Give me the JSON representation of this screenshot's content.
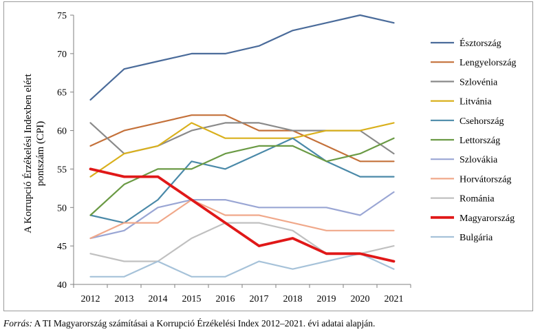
{
  "chart_data": {
    "type": "line",
    "title": "",
    "xlabel": "",
    "ylabel_lines": [
      "A Korrupció Érzékelési Indexben elért",
      "pontszám (CPI)"
    ],
    "categories": [
      "2012",
      "2013",
      "2014",
      "2015",
      "2016",
      "2017",
      "2018",
      "2019",
      "2020",
      "2021"
    ],
    "ylim": [
      40,
      75
    ],
    "yticks": [
      40,
      45,
      50,
      55,
      60,
      65,
      70,
      75
    ],
    "grid": false,
    "legend_position": "right",
    "series": [
      {
        "name": "Észtország",
        "color": "#4a6b9a",
        "width": 2.2,
        "values": [
          64,
          68,
          69,
          70,
          70,
          71,
          73,
          74,
          75,
          74
        ]
      },
      {
        "name": "Lengyelország",
        "color": "#c4713a",
        "width": 2.2,
        "values": [
          58,
          60,
          61,
          62,
          62,
          60,
          60,
          58,
          56,
          56
        ]
      },
      {
        "name": "Szlovénia",
        "color": "#8a8a8a",
        "width": 2.2,
        "values": [
          61,
          57,
          58,
          60,
          61,
          61,
          60,
          60,
          60,
          57
        ]
      },
      {
        "name": "Litvánia",
        "color": "#d9b01c",
        "width": 2.2,
        "values": [
          54,
          57,
          58,
          61,
          59,
          59,
          59,
          60,
          60,
          61
        ]
      },
      {
        "name": "Csehország",
        "color": "#4a89a8",
        "width": 2.2,
        "values": [
          49,
          48,
          51,
          56,
          55,
          57,
          59,
          56,
          54,
          54
        ]
      },
      {
        "name": "Lettország",
        "color": "#6a9a44",
        "width": 2.2,
        "values": [
          49,
          53,
          55,
          55,
          57,
          58,
          58,
          56,
          57,
          59
        ]
      },
      {
        "name": "Szlovákia",
        "color": "#9aa6d4",
        "width": 2.2,
        "values": [
          46,
          47,
          50,
          51,
          51,
          50,
          50,
          50,
          49,
          52
        ]
      },
      {
        "name": "Horvátország",
        "color": "#f0a88a",
        "width": 2.2,
        "values": [
          46,
          48,
          48,
          51,
          49,
          49,
          48,
          47,
          47,
          47
        ]
      },
      {
        "name": "Románia",
        "color": "#c0c0c0",
        "width": 2.2,
        "values": [
          44,
          43,
          43,
          46,
          48,
          48,
          47,
          44,
          44,
          45
        ]
      },
      {
        "name": "Magyarország",
        "color": "#e01818",
        "width": 3.8,
        "values": [
          55,
          54,
          54,
          51,
          48,
          45,
          46,
          44,
          44,
          43
        ]
      },
      {
        "name": "Bulgária",
        "color": "#a6c2d9",
        "width": 2.2,
        "values": [
          41,
          41,
          43,
          41,
          41,
          43,
          42,
          43,
          44,
          42
        ]
      }
    ]
  },
  "source": {
    "lead": "Forrás:",
    "text": " A TI Magyarország számításai a Korrupció Érzékelési Index 2012–2021. évi adatai alapján."
  }
}
